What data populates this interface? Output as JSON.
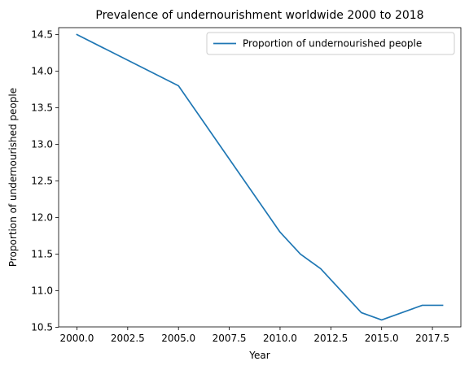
{
  "chart_data": {
    "type": "line",
    "title": "Prevalence of undernourishment worldwide 2000 to 2018",
    "xlabel": "Year",
    "ylabel": "Proportion of undernourished people",
    "xlim": [
      1999.1,
      2018.9
    ],
    "ylim": [
      10.505,
      14.595
    ],
    "x_ticks": [
      2000.0,
      2002.5,
      2005.0,
      2007.5,
      2010.0,
      2012.5,
      2015.0,
      2017.5
    ],
    "x_tick_labels": [
      "2000.0",
      "2002.5",
      "2005.0",
      "2007.5",
      "2010.0",
      "2012.5",
      "2015.0",
      "2017.5"
    ],
    "y_ticks": [
      10.5,
      11.0,
      11.5,
      12.0,
      12.5,
      13.0,
      13.5,
      14.0,
      14.5
    ],
    "y_tick_labels": [
      "10.5",
      "11.0",
      "11.5",
      "12.0",
      "12.5",
      "13.0",
      "13.5",
      "14.0",
      "14.5"
    ],
    "grid": false,
    "legend_position": "upper right",
    "series": [
      {
        "name": "Proportion of undernourished people",
        "color": "#1f77b4",
        "x": [
          2000,
          2005,
          2010,
          2011,
          2012,
          2014,
          2015,
          2017,
          2018
        ],
        "y": [
          14.5,
          13.8,
          11.8,
          11.5,
          11.3,
          10.7,
          10.6,
          10.8,
          10.8
        ]
      }
    ]
  }
}
